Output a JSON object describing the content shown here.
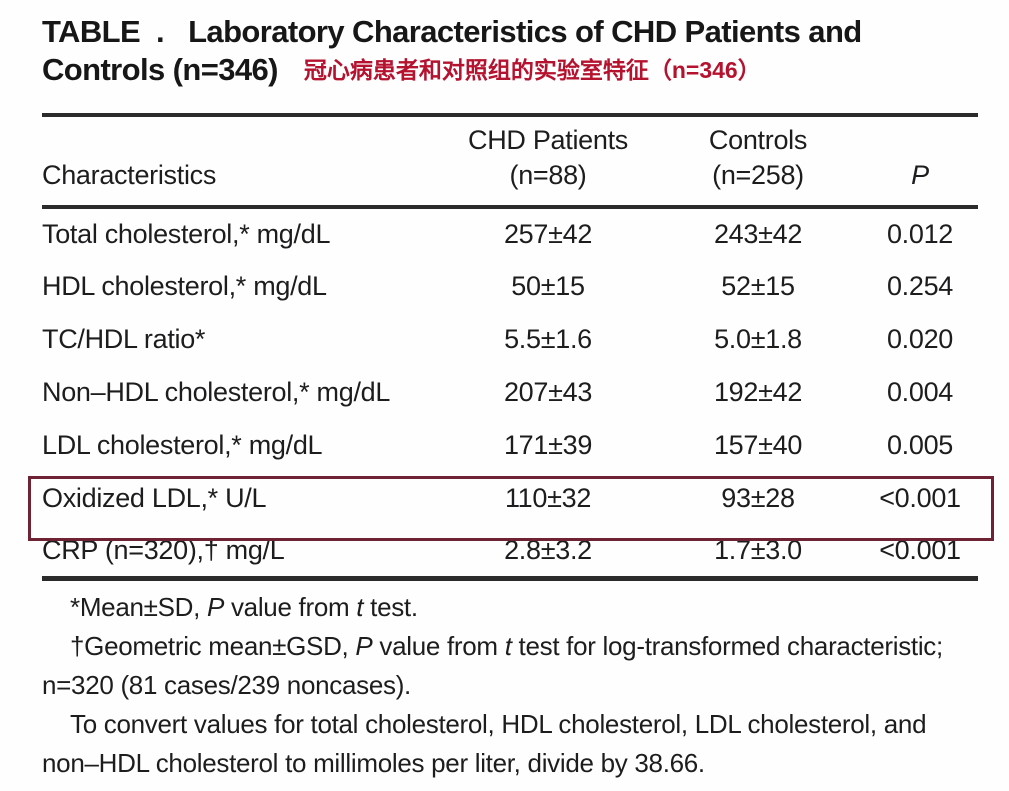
{
  "title": {
    "line1": "TABLE  .   Laboratory Characteristics of CHD Patients and",
    "line2": "Controls (n=346)",
    "annotation": "冠心病患者和对照组的实验室特征（n=346）"
  },
  "table": {
    "header": {
      "characteristics": "Characteristics",
      "chd_line1": "CHD Patients",
      "chd_line2": "(n=88)",
      "controls_line1": "Controls",
      "controls_line2": "(n=258)",
      "p": "P"
    },
    "rows": [
      {
        "label": "Total cholesterol,* mg/dL",
        "chd": "257±42",
        "controls": "243±42",
        "p": "0.012",
        "highlighted": false
      },
      {
        "label": "HDL cholesterol,* mg/dL",
        "chd": "50±15",
        "controls": "52±15",
        "p": "0.254",
        "highlighted": false
      },
      {
        "label": "TC/HDL ratio*",
        "chd": "5.5±1.6",
        "controls": "5.0±1.8",
        "p": "0.020",
        "highlighted": false
      },
      {
        "label": "Non–HDL cholesterol,* mg/dL",
        "chd": "207±43",
        "controls": "192±42",
        "p": "0.004",
        "highlighted": false
      },
      {
        "label": "LDL cholesterol,* mg/dL",
        "chd": "171±39",
        "controls": "157±40",
        "p": "0.005",
        "highlighted": false
      },
      {
        "label": "Oxidized LDL,* U/L",
        "chd": "110±32",
        "controls": "93±28",
        "p": "<0.001",
        "highlighted": true
      },
      {
        "label": "CRP (n=320),† mg/L",
        "chd": "2.8±3.2",
        "controls": "1.7±3.0",
        "p": "<0.001",
        "highlighted": false
      }
    ]
  },
  "footnotes": [
    {
      "segments": [
        {
          "t": "*Mean±SD, "
        },
        {
          "t": "P",
          "i": true
        },
        {
          "t": " value from "
        },
        {
          "t": "t",
          "i": true
        },
        {
          "t": " test."
        }
      ]
    },
    {
      "segments": [
        {
          "t": "†Geometric mean±GSD, "
        },
        {
          "t": "P",
          "i": true
        },
        {
          "t": " value from "
        },
        {
          "t": "t",
          "i": true
        },
        {
          "t": " test for log-transformed characteristic; n=320 (81 cases/239 noncases)."
        }
      ]
    },
    {
      "segments": [
        {
          "t": "To convert values for total cholesterol, HDL cholesterol, LDL cholesterol, and non–HDL cholesterol to millimoles per liter, divide by 38.66."
        }
      ]
    }
  ],
  "colors": {
    "annotation_red": "#b5122f",
    "highlight_border": "#6f2233",
    "rule": "#2b2b2b",
    "text": "#1d1d1f"
  }
}
